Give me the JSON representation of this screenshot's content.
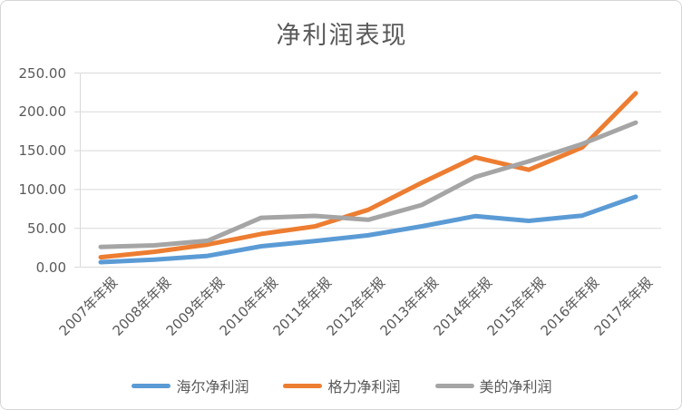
{
  "canvas": {
    "background": "#ffffff",
    "border_color": "#d6d6d6",
    "gridline_color": "#d9d9d9",
    "axis_text_color": "#595959"
  },
  "chart_data": {
    "type": "line",
    "title": "净利润表现",
    "categories": [
      "2007年年报",
      "2008年年报",
      "2009年年报",
      "2010年年报",
      "2011年年报",
      "2012年年报",
      "2013年年报",
      "2014年年报",
      "2015年年报",
      "2016年年报",
      "2017年年报"
    ],
    "series": [
      {
        "name": "海尔净利润",
        "color": "#5B9BD5",
        "values": [
          6.4,
          9.7,
          14.5,
          26.9,
          33.5,
          41.0,
          52.6,
          65.6,
          59.6,
          66.4,
          90.7
        ]
      },
      {
        "name": "格力净利润",
        "color": "#ED7D31",
        "values": [
          12.7,
          19.7,
          29.1,
          42.8,
          52.4,
          73.8,
          108.7,
          141.5,
          125.3,
          154.2,
          224.0
        ]
      },
      {
        "name": "美的净利润",
        "color": "#A5A5A5",
        "values": [
          26.0,
          28.0,
          34.0,
          63.5,
          66.0,
          61.0,
          80.0,
          116.1,
          136.2,
          158.6,
          186.1
        ]
      }
    ],
    "ylim": [
      0,
      250
    ],
    "ytick_step": 50,
    "ytick_labels": [
      "0.00",
      "50.00",
      "100.00",
      "150.00",
      "200.00",
      "250.00"
    ],
    "grid": "horizontal",
    "legend_position": "bottom",
    "xlabel": "",
    "ylabel": ""
  }
}
